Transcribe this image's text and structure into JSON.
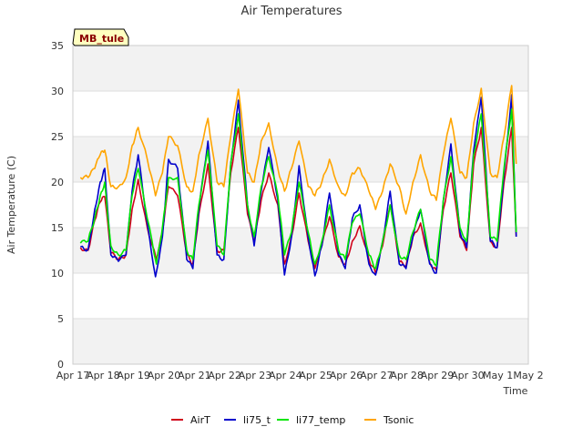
{
  "chart_data": {
    "type": "line",
    "title": "Air Temperatures",
    "xlabel": "Time",
    "ylabel": "Air Temperature (C)",
    "site_label": "MB_tule",
    "ylim": [
      0,
      35
    ],
    "yticks": [
      0,
      5,
      10,
      15,
      20,
      25,
      30,
      35
    ],
    "xlim": [
      0,
      15
    ],
    "xticks": [
      0,
      1,
      2,
      3,
      4,
      5,
      6,
      7,
      8,
      9,
      10,
      11,
      12,
      13,
      14,
      15
    ],
    "xtick_labels": [
      "Apr 17",
      "Apr 18",
      "Apr 19",
      "Apr 20",
      "Apr 21",
      "Apr 22",
      "Apr 23",
      "Apr 24",
      "Apr 25",
      "Apr 26",
      "Apr 27",
      "Apr 28",
      "Apr 29",
      "Apr 30",
      "May 1",
      "May 2"
    ],
    "grid": "banded",
    "legend_position": "bottom",
    "series": [
      {
        "name": "AirT",
        "color": "#d0021b",
        "x": [
          0.25,
          0.5,
          0.72,
          0.9,
          1.05,
          1.25,
          1.5,
          1.75,
          1.95,
          2.15,
          2.45,
          2.75,
          2.95,
          3.15,
          3.45,
          3.75,
          3.95,
          4.15,
          4.45,
          4.75,
          4.97,
          5.2,
          5.45,
          5.75,
          5.97,
          6.2,
          6.45,
          6.75,
          6.97,
          7.2,
          7.45,
          7.75,
          7.97,
          8.2,
          8.45,
          8.75,
          8.97,
          9.2,
          9.45,
          9.75,
          9.97,
          10.2,
          10.45,
          10.75,
          10.97,
          11.2,
          11.45,
          11.75,
          11.97,
          12.2,
          12.45,
          12.75,
          12.97,
          13.2,
          13.45,
          13.75,
          13.97,
          14.2,
          14.45
        ],
        "y": [
          12.8,
          12.5,
          15.8,
          17.8,
          18.4,
          12.2,
          11.5,
          12.0,
          17.0,
          20.3,
          15.0,
          11.5,
          14.5,
          19.5,
          18.5,
          12.0,
          11.0,
          16.5,
          22.0,
          12.5,
          12.5,
          21.0,
          26.0,
          16.5,
          13.3,
          18.0,
          21.0,
          17.5,
          11.0,
          14.0,
          18.8,
          13.5,
          10.5,
          13.0,
          16.2,
          11.8,
          11.0,
          13.5,
          15.2,
          11.5,
          10.0,
          13.0,
          17.5,
          11.2,
          10.8,
          14.0,
          15.5,
          11.2,
          10.3,
          17.0,
          21.0,
          14.0,
          12.5,
          22.0,
          26.0,
          13.5,
          12.8,
          20.0,
          26.0
        ],
        "end": [
          14.6,
          14.0
        ]
      },
      {
        "name": "li75_t",
        "color": "#0000cc",
        "x": [
          0.25,
          0.5,
          0.72,
          0.9,
          1.05,
          1.25,
          1.5,
          1.75,
          1.95,
          2.15,
          2.45,
          2.72,
          2.95,
          3.15,
          3.45,
          3.75,
          3.95,
          4.15,
          4.45,
          4.75,
          4.97,
          5.2,
          5.45,
          5.75,
          5.97,
          6.2,
          6.45,
          6.75,
          6.97,
          7.2,
          7.45,
          7.75,
          7.97,
          8.2,
          8.45,
          8.75,
          8.97,
          9.2,
          9.45,
          9.75,
          9.97,
          10.2,
          10.45,
          10.75,
          10.97,
          11.2,
          11.45,
          11.75,
          11.97,
          12.2,
          12.45,
          12.75,
          12.97,
          13.2,
          13.45,
          13.75,
          13.97,
          14.2,
          14.45
        ],
        "y": [
          12.9,
          12.6,
          17.0,
          20.0,
          21.5,
          12.0,
          11.3,
          12.0,
          19.0,
          23.0,
          15.5,
          9.6,
          14.0,
          22.5,
          21.5,
          11.5,
          10.5,
          17.0,
          24.5,
          12.0,
          11.5,
          22.0,
          29.0,
          17.5,
          13.0,
          19.0,
          23.8,
          18.0,
          9.8,
          14.0,
          21.8,
          14.0,
          9.7,
          13.0,
          18.8,
          12.0,
          10.5,
          16.0,
          17.5,
          11.0,
          9.8,
          13.5,
          19.0,
          11.0,
          10.5,
          14.0,
          17.0,
          11.0,
          10.0,
          18.0,
          24.2,
          14.5,
          12.8,
          23.5,
          29.3,
          13.5,
          12.8,
          21.0,
          29.6
        ],
        "end": [
          14.6,
          14.0
        ]
      },
      {
        "name": "li77_temp",
        "color": "#00e600",
        "x": [
          0.25,
          0.5,
          0.72,
          0.9,
          1.05,
          1.25,
          1.5,
          1.75,
          1.95,
          2.15,
          2.45,
          2.75,
          2.95,
          3.15,
          3.45,
          3.75,
          3.95,
          4.15,
          4.45,
          4.75,
          4.97,
          5.2,
          5.45,
          5.75,
          5.97,
          6.2,
          6.45,
          6.75,
          6.97,
          7.2,
          7.45,
          7.75,
          7.97,
          8.2,
          8.45,
          8.75,
          8.97,
          9.2,
          9.45,
          9.75,
          9.97,
          10.2,
          10.45,
          10.75,
          10.97,
          11.2,
          11.45,
          11.75,
          11.97,
          12.2,
          12.45,
          12.75,
          12.97,
          13.2,
          13.45,
          13.75,
          13.97,
          14.2,
          14.45
        ],
        "y": [
          13.3,
          13.5,
          16.0,
          18.5,
          20.0,
          13.0,
          12.0,
          12.5,
          18.5,
          21.5,
          16.0,
          11.0,
          15.0,
          20.5,
          20.5,
          12.5,
          11.5,
          17.5,
          23.5,
          13.0,
          12.0,
          22.0,
          27.5,
          17.5,
          14.0,
          19.5,
          22.8,
          18.5,
          12.0,
          14.5,
          20.0,
          14.5,
          11.0,
          13.5,
          17.5,
          12.5,
          11.5,
          15.5,
          16.5,
          12.0,
          10.5,
          13.5,
          17.5,
          12.0,
          11.5,
          14.5,
          17.0,
          11.5,
          10.8,
          18.0,
          22.8,
          15.0,
          13.5,
          23.0,
          27.5,
          14.0,
          13.5,
          21.5,
          28.0
        ],
        "end": [
          14.6,
          14.5
        ]
      },
      {
        "name": "Tsonic",
        "color": "#ffa500",
        "x": [
          0.25,
          0.5,
          0.72,
          0.9,
          1.05,
          1.25,
          1.5,
          1.75,
          1.95,
          2.15,
          2.45,
          2.72,
          2.95,
          3.15,
          3.45,
          3.75,
          3.95,
          4.15,
          4.45,
          4.75,
          4.97,
          5.2,
          5.45,
          5.75,
          5.97,
          6.2,
          6.45,
          6.75,
          6.97,
          7.2,
          7.45,
          7.75,
          7.97,
          8.2,
          8.45,
          8.75,
          8.97,
          9.2,
          9.45,
          9.75,
          9.97,
          10.2,
          10.45,
          10.75,
          10.97,
          11.2,
          11.45,
          11.75,
          11.97,
          12.2,
          12.45,
          12.75,
          12.97,
          13.2,
          13.45,
          13.75,
          13.97,
          14.2,
          14.45
        ],
        "y": [
          20.5,
          20.5,
          21.5,
          23.0,
          23.5,
          19.5,
          19.5,
          20.5,
          24.0,
          26.0,
          22.5,
          18.5,
          21.0,
          25.0,
          24.0,
          19.5,
          19.0,
          23.0,
          27.0,
          20.0,
          19.5,
          25.0,
          30.2,
          21.0,
          20.0,
          24.5,
          26.5,
          21.5,
          19.0,
          21.5,
          24.5,
          19.5,
          18.5,
          20.0,
          22.5,
          19.5,
          18.5,
          21.0,
          21.5,
          19.0,
          17.0,
          19.0,
          22.0,
          19.5,
          16.5,
          20.0,
          23.0,
          19.0,
          18.0,
          23.0,
          27.0,
          21.0,
          20.5,
          26.5,
          30.3,
          21.0,
          20.5,
          25.0,
          30.6
        ],
        "end": [
          14.6,
          22.0
        ]
      }
    ]
  }
}
